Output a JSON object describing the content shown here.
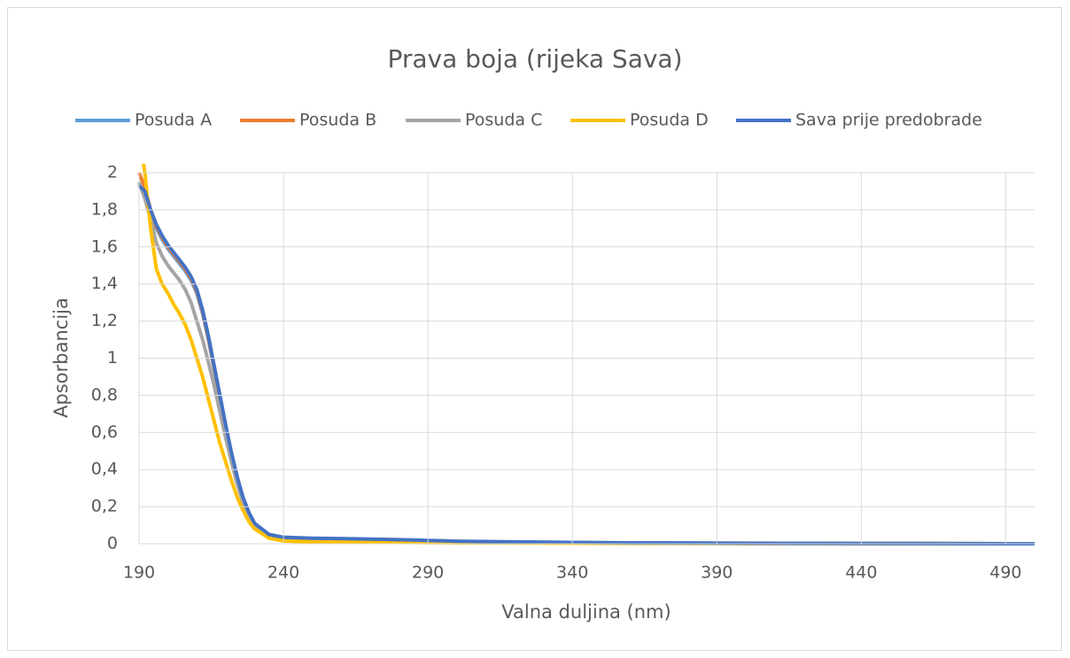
{
  "chart_data": {
    "type": "line",
    "title": "Prava boja (rijeka Sava)",
    "x_label": "Valna duljina (nm)",
    "y_label": "Apsorbancija",
    "x": [
      190,
      192,
      194,
      196,
      198,
      200,
      202,
      204,
      206,
      208,
      210,
      212,
      214,
      216,
      218,
      220,
      222,
      224,
      226,
      228,
      230,
      235,
      240,
      250,
      260,
      270,
      280,
      290,
      300,
      320,
      340,
      360,
      380,
      400,
      450,
      500
    ],
    "series": [
      {
        "name": "Posuda A",
        "color": "#5b9bd5",
        "values": [
          1.94,
          1.88,
          1.78,
          1.7,
          1.64,
          1.59,
          1.55,
          1.51,
          1.47,
          1.42,
          1.35,
          1.24,
          1.1,
          0.94,
          0.78,
          0.62,
          0.47,
          0.34,
          0.24,
          0.16,
          0.1,
          0.045,
          0.03,
          0.025,
          0.022,
          0.02,
          0.018,
          0.015,
          0.012,
          0.008,
          0.006,
          0.004,
          0.003,
          0.002,
          0.001,
          0
        ]
      },
      {
        "name": "Posuda B",
        "color": "#ed7d31",
        "values": [
          2.0,
          1.92,
          1.8,
          1.71,
          1.65,
          1.6,
          1.56,
          1.52,
          1.48,
          1.43,
          1.36,
          1.25,
          1.11,
          0.95,
          0.79,
          0.63,
          0.48,
          0.35,
          0.24,
          0.16,
          0.1,
          0.045,
          0.03,
          0.026,
          0.023,
          0.021,
          0.019,
          0.016,
          0.012,
          0.008,
          0.006,
          0.004,
          0.003,
          0.002,
          0.001,
          0
        ]
      },
      {
        "name": "Posuda C",
        "color": "#a5a5a5",
        "values": [
          1.95,
          1.86,
          1.75,
          1.62,
          1.55,
          1.5,
          1.46,
          1.42,
          1.37,
          1.3,
          1.2,
          1.1,
          0.98,
          0.85,
          0.71,
          0.57,
          0.44,
          0.32,
          0.22,
          0.15,
          0.09,
          0.04,
          0.025,
          0.02,
          0.018,
          0.016,
          0.014,
          0.012,
          0.01,
          0.007,
          0.005,
          0.004,
          0.003,
          0.002,
          0.001,
          0
        ]
      },
      {
        "name": "Posuda D",
        "color": "#ffc000",
        "values": [
          2.2,
          2.0,
          1.7,
          1.48,
          1.4,
          1.35,
          1.29,
          1.24,
          1.18,
          1.1,
          1.0,
          0.9,
          0.78,
          0.66,
          0.54,
          0.44,
          0.34,
          0.25,
          0.18,
          0.12,
          0.08,
          0.03,
          0.015,
          0.01,
          0.009,
          0.008,
          0.007,
          0.006,
          0.005,
          0.004,
          0.003,
          0.002,
          0.002,
          0.001,
          0.001,
          0
        ]
      },
      {
        "name": "Sava prije predobrade",
        "color": "#4472c4",
        "values": [
          1.93,
          1.9,
          1.8,
          1.72,
          1.66,
          1.61,
          1.57,
          1.53,
          1.49,
          1.44,
          1.37,
          1.26,
          1.12,
          0.96,
          0.8,
          0.64,
          0.49,
          0.36,
          0.25,
          0.17,
          0.11,
          0.05,
          0.035,
          0.03,
          0.028,
          0.025,
          0.022,
          0.018,
          0.014,
          0.01,
          0.007,
          0.005,
          0.004,
          0.003,
          0.001,
          0
        ]
      }
    ],
    "xlim": [
      190,
      500
    ],
    "xticks": [
      190,
      240,
      290,
      340,
      390,
      440,
      490
    ],
    "ylim": [
      0,
      2
    ],
    "yticks": [
      0,
      {
        "value": 0.2,
        "label": "0,2"
      },
      {
        "value": 0.4,
        "label": "0,4"
      },
      {
        "value": 0.6,
        "label": "0,6"
      },
      {
        "value": 0.8,
        "label": "0,8"
      },
      1,
      {
        "value": 1.2,
        "label": "1,2"
      },
      {
        "value": 1.4,
        "label": "1,4"
      },
      {
        "value": 1.6,
        "label": "1,6"
      },
      {
        "value": 1.8,
        "label": "1,8"
      },
      2
    ],
    "grid": true,
    "legend": "top"
  }
}
